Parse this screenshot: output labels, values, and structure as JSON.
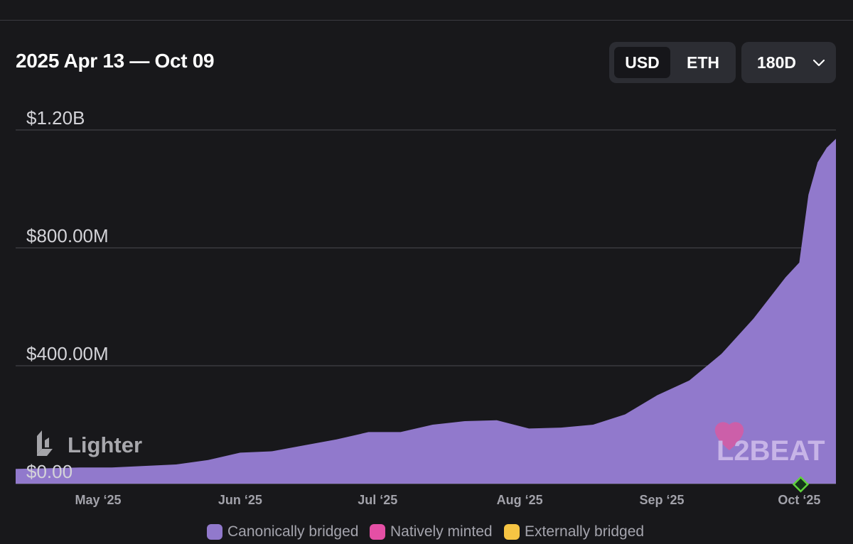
{
  "header": {
    "date_range": "2025 Apr 13 — Oct 09",
    "units": [
      {
        "label": "USD",
        "active": true
      },
      {
        "label": "ETH",
        "active": false
      }
    ],
    "range_selector": {
      "label": "180D",
      "icon": "chevron-down-icon"
    }
  },
  "watermarks": {
    "project": "Lighter",
    "brand": "L2BEAT"
  },
  "colors": {
    "background": "#18181b",
    "canonical": "#9179cc",
    "native": "#e44fa5",
    "external": "#f6c443",
    "grid": "#4a4a50",
    "axis_text": "#d3d3d8",
    "marker": "#5fd33b"
  },
  "chart_data": {
    "type": "area",
    "title": "2025 Apr 13 — Oct 09",
    "y_tick_labels": [
      "$0.00",
      "$400.00M",
      "$800.00M",
      "$1.20B"
    ],
    "y_ticks": [
      0,
      400,
      800,
      1200
    ],
    "ylim": [
      0,
      1200
    ],
    "y_unit": "USD millions",
    "x_tick_labels": [
      "May ‘25",
      "Jun ‘25",
      "Jul ‘25",
      "Aug ‘25",
      "Sep ‘25",
      "Oct ‘25"
    ],
    "x_ticks": [
      "2025-05-01",
      "2025-06-01",
      "2025-07-01",
      "2025-08-01",
      "2025-09-01",
      "2025-10-01"
    ],
    "xlim": [
      "2025-04-13",
      "2025-10-09"
    ],
    "grid": true,
    "legend_position": "bottom",
    "series": [
      {
        "name": "Canonically bridged",
        "x": [
          "2025-04-13",
          "2025-04-20",
          "2025-04-27",
          "2025-05-04",
          "2025-05-11",
          "2025-05-18",
          "2025-05-25",
          "2025-06-01",
          "2025-06-08",
          "2025-06-15",
          "2025-06-22",
          "2025-06-29",
          "2025-07-06",
          "2025-07-13",
          "2025-07-20",
          "2025-07-27",
          "2025-08-03",
          "2025-08-10",
          "2025-08-17",
          "2025-08-24",
          "2025-08-31",
          "2025-09-07",
          "2025-09-14",
          "2025-09-21",
          "2025-09-28",
          "2025-10-01",
          "2025-10-03",
          "2025-10-05",
          "2025-10-07",
          "2025-10-09"
        ],
        "y": [
          50,
          52,
          55,
          55,
          60,
          65,
          80,
          105,
          110,
          130,
          150,
          175,
          175,
          200,
          212,
          215,
          187,
          190,
          200,
          235,
          300,
          350,
          440,
          560,
          700,
          750,
          980,
          1090,
          1140,
          1170
        ]
      },
      {
        "name": "Natively minted",
        "x": [],
        "y": []
      },
      {
        "name": "Externally bridged",
        "x": [],
        "y": []
      }
    ]
  },
  "legend": [
    {
      "label": "Canonically bridged",
      "color": "#9179cc"
    },
    {
      "label": "Natively minted",
      "color": "#e44fa5"
    },
    {
      "label": "Externally bridged",
      "color": "#f6c443"
    }
  ]
}
